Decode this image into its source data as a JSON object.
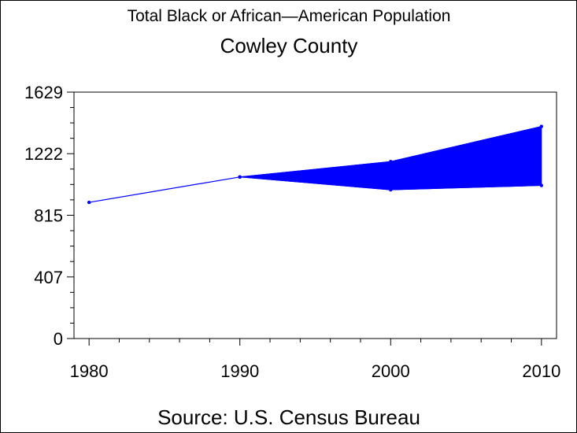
{
  "chart_data": {
    "type": "area",
    "title": "Total Black or African—American Population",
    "subtitle": "Cowley County",
    "footnote": "Source: U.S. Census Bureau",
    "xlabel": "",
    "ylabel": "",
    "x_ticks": [
      "1980",
      "1990",
      "2000",
      "2010"
    ],
    "y_ticks": [
      "0",
      "407",
      "815",
      "1222",
      "1629"
    ],
    "xlim": [
      1979,
      2011
    ],
    "ylim": [
      0,
      1629
    ],
    "grid": false,
    "series": [
      {
        "values": [
          {
            "x": 1980,
            "y": 900
          },
          {
            "x": 1990,
            "y": 1068
          }
        ]
      },
      {
        "values": [
          {
            "x": 1990,
            "y": 1068
          },
          {
            "x": 2000,
            "y": 1170
          },
          {
            "x": 2010,
            "y": 1402
          }
        ]
      },
      {
        "values": [
          {
            "x": 1990,
            "y": 1068
          },
          {
            "x": 2000,
            "y": 983
          },
          {
            "x": 2010,
            "y": 1012
          }
        ]
      }
    ],
    "color": "#0000ff"
  }
}
